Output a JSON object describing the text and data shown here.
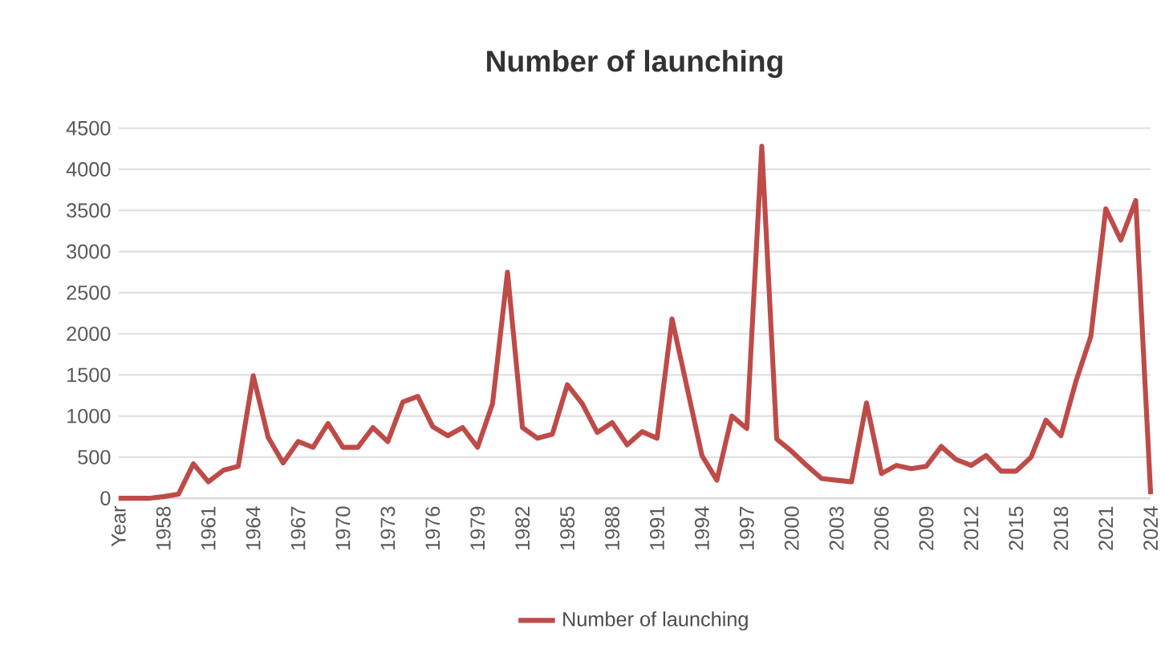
{
  "chart_data": {
    "type": "line",
    "title": "Number of launching",
    "categories": [
      "Year",
      null,
      null,
      "1958",
      null,
      null,
      "1961",
      null,
      null,
      "1964",
      null,
      null,
      "1967",
      null,
      null,
      "1970",
      null,
      null,
      "1973",
      null,
      null,
      "1976",
      null,
      null,
      "1979",
      null,
      null,
      "1982",
      null,
      null,
      "1985",
      null,
      null,
      "1988",
      null,
      null,
      "1991",
      null,
      null,
      "1994",
      null,
      null,
      "1997",
      null,
      null,
      "2000",
      null,
      null,
      "2003",
      null,
      null,
      "2006",
      null,
      null,
      "2009",
      null,
      null,
      "2012",
      null,
      null,
      "2015",
      null,
      null,
      "2018",
      null,
      null,
      "2021",
      null,
      null,
      "2024"
    ],
    "series": [
      {
        "name": "Number of launching",
        "color": "#be4b48",
        "values": [
          0,
          0,
          0,
          20,
          50,
          420,
          200,
          340,
          390,
          1490,
          740,
          430,
          690,
          620,
          910,
          620,
          620,
          860,
          690,
          1170,
          1240,
          870,
          760,
          860,
          620,
          1150,
          2750,
          860,
          730,
          780,
          1380,
          1150,
          800,
          920,
          650,
          810,
          730,
          2180,
          1350,
          520,
          220,
          1000,
          850,
          4280,
          720,
          570,
          400,
          240,
          220,
          200,
          1160,
          300,
          400,
          360,
          390,
          630,
          470,
          400,
          520,
          330,
          330,
          500,
          950,
          760,
          1420,
          1970,
          3520,
          3140,
          3620,
          50
        ]
      }
    ],
    "ylim": [
      0,
      4500
    ],
    "yticks": [
      0,
      500,
      1000,
      1500,
      2000,
      2500,
      3000,
      3500,
      4000,
      4500
    ],
    "grid": "y",
    "legend": "bottom"
  }
}
